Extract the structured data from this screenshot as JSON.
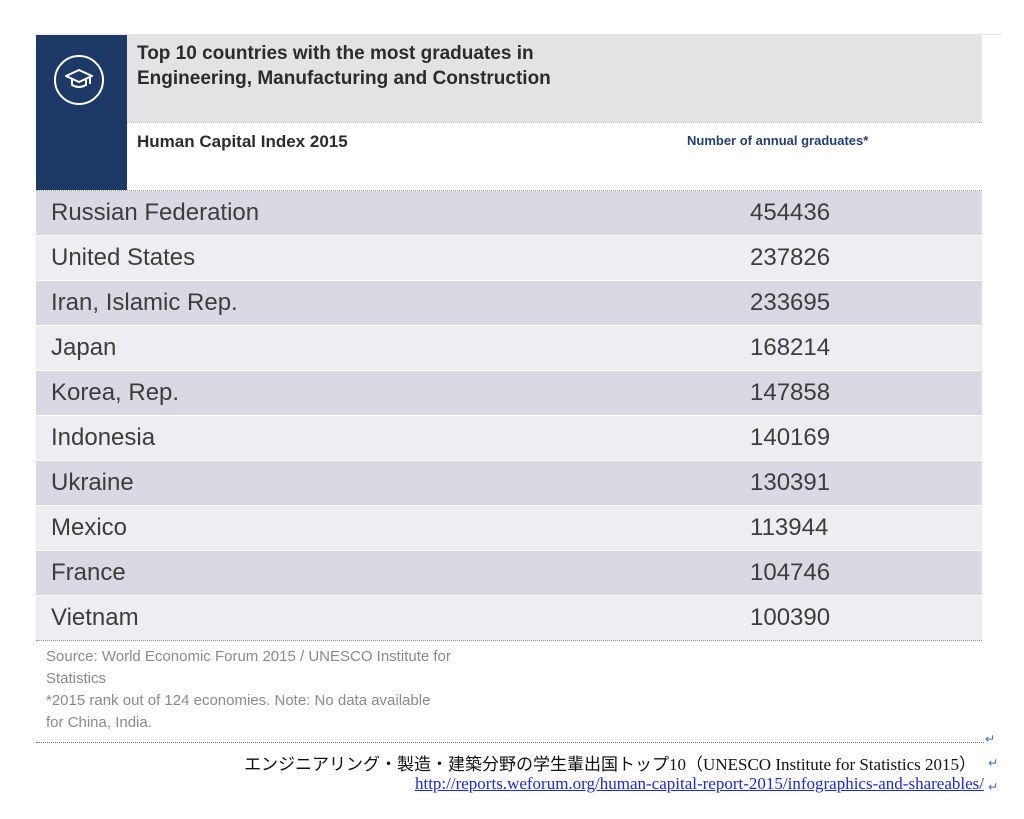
{
  "header": {
    "title_line1": "Top 10 countries with the most graduates in",
    "title_line2": "Engineering, Manufacturing and Construction",
    "subtitle": "Human Capital Index 2015",
    "column_header": "Number of annual graduates*",
    "icon": "graduation-cap-icon"
  },
  "rows": [
    {
      "country": "Russian Federation",
      "value": "454436"
    },
    {
      "country": "United States",
      "value": "237826"
    },
    {
      "country": "Iran, Islamic Rep.",
      "value": "233695"
    },
    {
      "country": "Japan",
      "value": "168214"
    },
    {
      "country": "Korea, Rep.",
      "value": "147858"
    },
    {
      "country": "Indonesia",
      "value": "140169"
    },
    {
      "country": "Ukraine",
      "value": "130391"
    },
    {
      "country": "Mexico",
      "value": "113944"
    },
    {
      "country": "France",
      "value": "104746"
    },
    {
      "country": "Vietnam",
      "value": "100390"
    }
  ],
  "source": {
    "line1": "Source: World Economic Forum 2015 / UNESCO Institute for",
    "line2": "Statistics",
    "line3": "*2015 rank out of 124 economies. Note: No data available",
    "line4": "for China, India."
  },
  "caption": "エンジニアリング・製造・建築分野の学生輩出国トップ10（UNESCO Institute for Statistics 2015）",
  "link": "http://reports.weforum.org/human-capital-report-2015/infographics-and-shareables/",
  "colors": {
    "navy": "#1d3a66",
    "row_dark": "#d9d9e3",
    "row_light": "#ededf2",
    "link": "#1a2bd6"
  }
}
